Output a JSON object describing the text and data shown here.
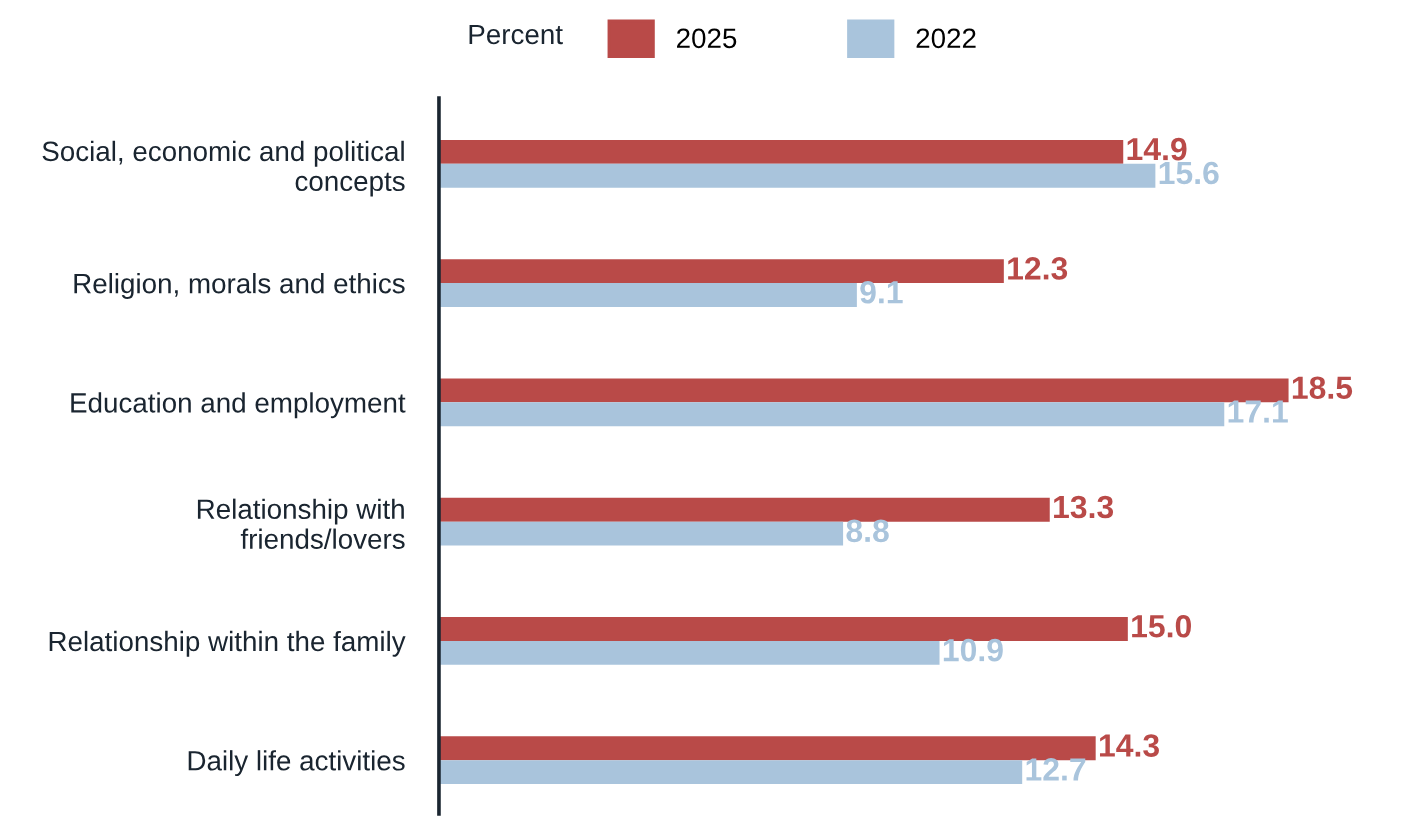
{
  "chart_data": {
    "type": "bar",
    "orientation": "horizontal",
    "legend_title": "Percent",
    "legend": "top",
    "categories": [
      "Social, economic and political\nconcepts",
      "Religion, morals and ethics",
      "Education and employment",
      "Relationship with\nfriends/lovers",
      "Relationship within the family",
      "Daily life activities"
    ],
    "series": [
      {
        "name": "2025",
        "color": "#b94a48",
        "values": [
          14.9,
          12.3,
          18.5,
          13.3,
          15.0,
          14.3
        ],
        "value_labels": [
          "14.9",
          "12.3",
          "18.5",
          "13.3",
          "15.0",
          "14.3"
        ]
      },
      {
        "name": "2022",
        "color": "#a9c4dc",
        "values": [
          15.6,
          9.1,
          17.1,
          8.8,
          10.9,
          12.7
        ],
        "value_labels": [
          "15.6",
          "9.1",
          "17.1",
          "8.8",
          "10.9",
          "12.7"
        ]
      }
    ],
    "grid": false
  }
}
